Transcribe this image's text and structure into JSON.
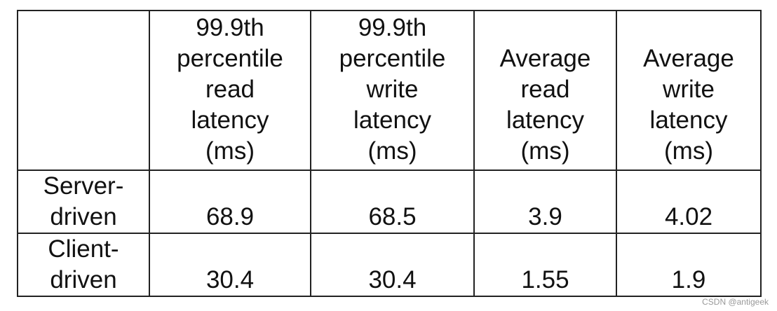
{
  "table": {
    "header": [
      "",
      "99.9th\npercentile\nread\nlatency\n(ms)",
      "99.9th\npercentile\nwrite\nlatency\n(ms)",
      "Average\nread\nlatency\n(ms)",
      "Average\nwrite\nlatency\n(ms)"
    ],
    "rows": [
      [
        "Server-\ndriven",
        68.9,
        68.5,
        3.9,
        4.02
      ],
      [
        "Client-\ndriven",
        30.4,
        30.4,
        1.55,
        1.9
      ]
    ]
  },
  "watermark": "CSDN @antigeek"
}
